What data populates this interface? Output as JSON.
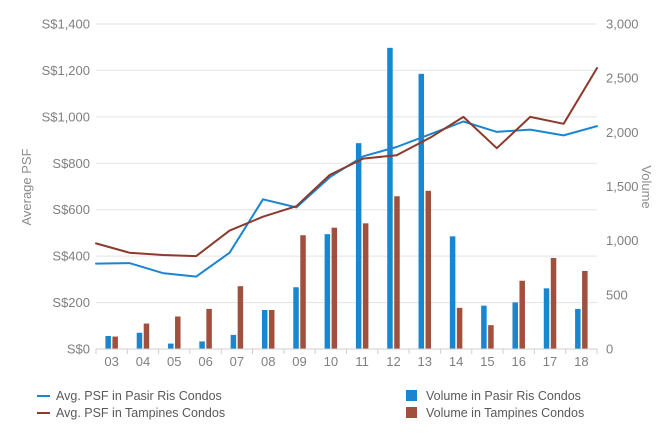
{
  "chart_data": {
    "type": "bar+line",
    "categories": [
      "03",
      "04",
      "05",
      "06",
      "07",
      "08",
      "09",
      "10",
      "11",
      "12",
      "13",
      "14",
      "15",
      "16",
      "17",
      "18"
    ],
    "left_axis": {
      "label": "Average PSF",
      "ylim": [
        0,
        1400
      ],
      "ticks": [
        0,
        200,
        400,
        600,
        800,
        1000,
        1200,
        1400
      ],
      "tick_labels": [
        "S$0",
        "S$200",
        "S$400",
        "S$600",
        "S$800",
        "S$1,000",
        "S$1,200",
        "S$1,400"
      ]
    },
    "right_axis": {
      "label": "Volume",
      "ylim": [
        0,
        3000
      ],
      "ticks": [
        0,
        500,
        1000,
        1500,
        2000,
        2500,
        3000
      ],
      "tick_labels": [
        "0",
        "500",
        "1,000",
        "1,500",
        "2,000",
        "2,500",
        "3,000"
      ]
    },
    "line_x": [
      0,
      1,
      2,
      3,
      4,
      5,
      6,
      7,
      8,
      9,
      10,
      11,
      12,
      13,
      14,
      15
    ],
    "lines": [
      {
        "name": "Avg. PSF in Pasir Ris Condos",
        "color": "#1a86d0",
        "values": [
          368,
          370,
          327,
          312,
          415,
          645,
          610,
          740,
          830,
          870,
          925,
          980,
          935,
          945,
          920,
          960
        ]
      },
      {
        "name": "Avg. PSF in Tampines Condos",
        "color": "#8c3a2c",
        "values": [
          455,
          415,
          405,
          400,
          510,
          570,
          615,
          750,
          820,
          835,
          910,
          1000,
          865,
          1000,
          970,
          1210
        ]
      }
    ],
    "bars": [
      {
        "name": "Volume in Pasir Ris Condos",
        "color": "#1a86d0",
        "values": [
          120,
          150,
          50,
          70,
          130,
          360,
          570,
          1060,
          1900,
          2780,
          2540,
          1040,
          400,
          430,
          560,
          370
        ]
      },
      {
        "name": "Volume in Tampines Condos",
        "color": "#a0503c",
        "values": [
          115,
          235,
          300,
          370,
          580,
          360,
          1050,
          1120,
          1160,
          1410,
          1460,
          380,
          220,
          630,
          840,
          720
        ]
      }
    ]
  }
}
